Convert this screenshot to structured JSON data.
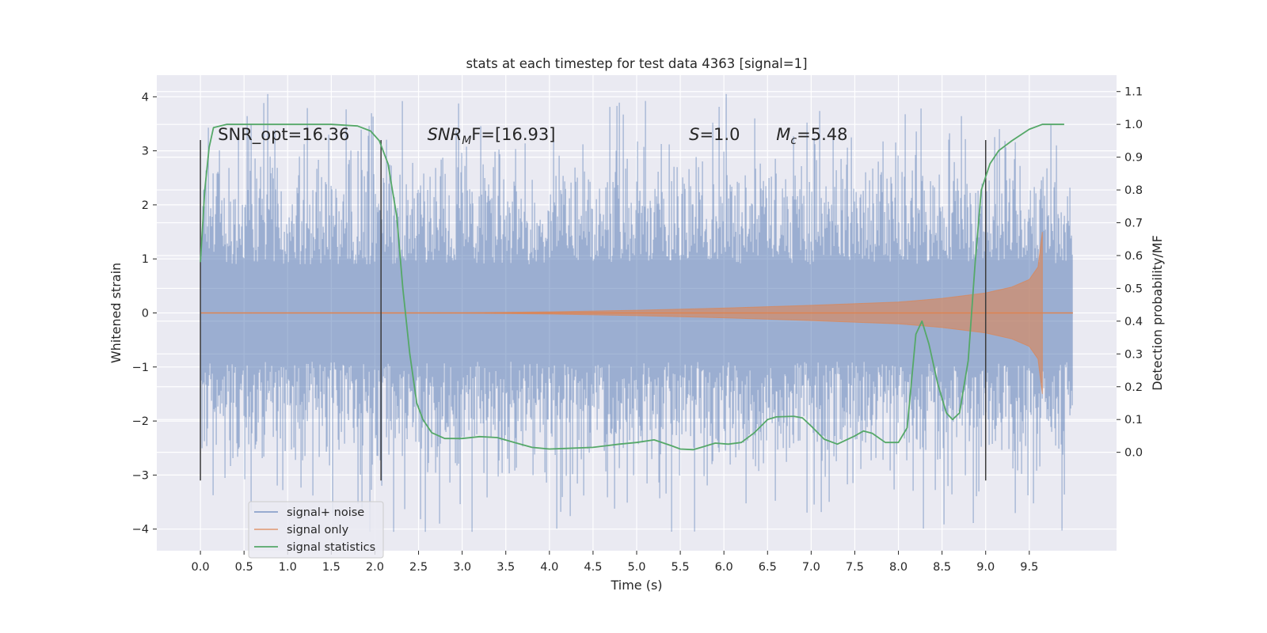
{
  "chart_data": {
    "type": "line",
    "title": "stats at each timestep for test data 4363 [signal=1]",
    "xlabel": "Time (s)",
    "ylabel": "Whitened strain",
    "y2label": "Detection probability/MF",
    "xlim": [
      -0.5,
      10.5
    ],
    "ylim": [
      -4.4,
      4.4
    ],
    "y2lim": [
      -0.3,
      1.15
    ],
    "xticks": [
      "0.0",
      "0.5",
      "1.0",
      "1.5",
      "2.0",
      "2.5",
      "3.0",
      "3.5",
      "4.0",
      "4.5",
      "5.0",
      "5.5",
      "6.0",
      "6.5",
      "7.0",
      "7.5",
      "8.0",
      "8.5",
      "9.0",
      "9.5"
    ],
    "yticks": [
      "4",
      "3",
      "2",
      "1",
      "0",
      "−1",
      "−2",
      "−3",
      "−4"
    ],
    "y2ticks": [
      "1.1",
      "1.0",
      "0.9",
      "0.8",
      "0.7",
      "0.6",
      "0.5",
      "0.4",
      "0.3",
      "0.2",
      "0.1",
      "0.0"
    ],
    "grid": true,
    "legend_position": "lower-left",
    "colors": {
      "background": "#eaeaf2",
      "grid": "#ffffff",
      "signal_noise": "#4c72b0",
      "signal_only": "#dd8452",
      "signal_statistics": "#55a868",
      "vertical_markers": "#3b3b3b"
    },
    "annotations": [
      {
        "text": "SNR_opt=16.36",
        "x": 0.2,
        "y": 3.2
      },
      {
        "text": "SNR",
        "sub": "M",
        "rest": "F=[16.93]",
        "x": 2.6,
        "y": 3.2
      },
      {
        "text": "S",
        "rest": "=1.0",
        "x": 5.6,
        "y": 3.2
      },
      {
        "text": "M",
        "sub": "c",
        "rest": "=5.48",
        "x": 6.6,
        "y": 3.2
      }
    ],
    "vertical_lines": [
      {
        "x": 0.0,
        "ymin": -3.1,
        "ymax": 3.2
      },
      {
        "x": 2.07,
        "ymin": -3.1,
        "ymax": 3.2
      },
      {
        "x": 9.0,
        "ymin": -3.1,
        "ymax": 3.2
      }
    ],
    "series": [
      {
        "name": "signal+ noise",
        "kind": "noise",
        "x_range": [
          0.0,
          10.0
        ],
        "typical_amplitude": 1.9,
        "peak_amplitude": 4.05
      },
      {
        "name": "signal only",
        "kind": "chirp",
        "x_range": [
          0.0,
          9.65
        ],
        "envelope": [
          [
            0.0,
            0.0
          ],
          [
            3.0,
            0.003
          ],
          [
            4.0,
            0.02
          ],
          [
            5.0,
            0.05
          ],
          [
            6.0,
            0.09
          ],
          [
            7.0,
            0.14
          ],
          [
            8.0,
            0.2
          ],
          [
            8.5,
            0.27
          ],
          [
            9.0,
            0.37
          ],
          [
            9.3,
            0.48
          ],
          [
            9.5,
            0.62
          ],
          [
            9.6,
            0.85
          ],
          [
            9.65,
            1.5
          ]
        ]
      },
      {
        "name": "signal statistics",
        "kind": "line",
        "axis": "right",
        "points": [
          [
            0.0,
            0.58
          ],
          [
            0.05,
            0.8
          ],
          [
            0.1,
            0.93
          ],
          [
            0.15,
            0.99
          ],
          [
            0.3,
            1.0
          ],
          [
            1.0,
            1.0
          ],
          [
            1.5,
            1.0
          ],
          [
            1.8,
            0.995
          ],
          [
            1.95,
            0.98
          ],
          [
            2.05,
            0.95
          ],
          [
            2.15,
            0.88
          ],
          [
            2.25,
            0.72
          ],
          [
            2.32,
            0.5
          ],
          [
            2.4,
            0.3
          ],
          [
            2.48,
            0.15
          ],
          [
            2.55,
            0.1
          ],
          [
            2.65,
            0.06
          ],
          [
            2.8,
            0.042
          ],
          [
            3.0,
            0.042
          ],
          [
            3.2,
            0.048
          ],
          [
            3.4,
            0.045
          ],
          [
            3.6,
            0.03
          ],
          [
            3.8,
            0.015
          ],
          [
            4.0,
            0.01
          ],
          [
            4.2,
            0.012
          ],
          [
            4.5,
            0.015
          ],
          [
            4.8,
            0.025
          ],
          [
            5.0,
            0.03
          ],
          [
            5.2,
            0.038
          ],
          [
            5.4,
            0.02
          ],
          [
            5.5,
            0.01
          ],
          [
            5.65,
            0.008
          ],
          [
            5.8,
            0.02
          ],
          [
            5.9,
            0.028
          ],
          [
            6.05,
            0.025
          ],
          [
            6.2,
            0.03
          ],
          [
            6.35,
            0.06
          ],
          [
            6.5,
            0.1
          ],
          [
            6.6,
            0.108
          ],
          [
            6.8,
            0.11
          ],
          [
            6.9,
            0.105
          ],
          [
            7.0,
            0.08
          ],
          [
            7.15,
            0.04
          ],
          [
            7.3,
            0.025
          ],
          [
            7.5,
            0.05
          ],
          [
            7.6,
            0.065
          ],
          [
            7.7,
            0.058
          ],
          [
            7.85,
            0.03
          ],
          [
            8.0,
            0.03
          ],
          [
            8.1,
            0.075
          ],
          [
            8.2,
            0.36
          ],
          [
            8.27,
            0.4
          ],
          [
            8.35,
            0.33
          ],
          [
            8.45,
            0.21
          ],
          [
            8.55,
            0.12
          ],
          [
            8.62,
            0.1
          ],
          [
            8.7,
            0.12
          ],
          [
            8.8,
            0.28
          ],
          [
            8.88,
            0.58
          ],
          [
            8.95,
            0.8
          ],
          [
            9.05,
            0.88
          ],
          [
            9.15,
            0.92
          ],
          [
            9.3,
            0.95
          ],
          [
            9.5,
            0.985
          ],
          [
            9.65,
            1.0
          ],
          [
            9.9,
            1.0
          ]
        ]
      }
    ]
  }
}
